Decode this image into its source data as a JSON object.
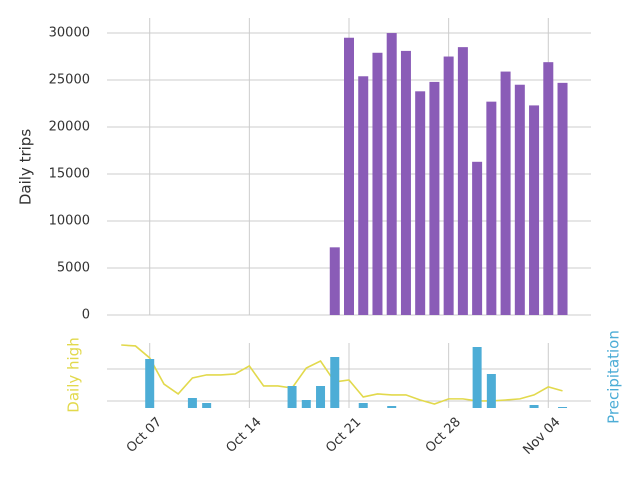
{
  "chart_data": [
    {
      "type": "bar",
      "ylabel": "Daily trips",
      "x": [
        "Oct 20",
        "Oct 21",
        "Oct 22",
        "Oct 23",
        "Oct 24",
        "Oct 25",
        "Oct 26",
        "Oct 27",
        "Oct 28",
        "Oct 29",
        "Oct 30",
        "Oct 31",
        "Nov 01",
        "Nov 02",
        "Nov 03",
        "Nov 04",
        "Nov 05"
      ],
      "values": [
        7200,
        29500,
        25400,
        27900,
        30000,
        28100,
        23800,
        24800,
        27500,
        28500,
        16300,
        22700,
        25900,
        24500,
        22300,
        26900,
        24700
      ],
      "color": "#8a5cb7",
      "xlim": [
        "Oct 04",
        "Nov 07"
      ],
      "ylim": [
        0,
        31600
      ],
      "yticks": [
        0,
        5000,
        10000,
        15000,
        20000,
        25000,
        30000
      ],
      "grid": true
    },
    {
      "type": "combo",
      "ylabel": "Daily high",
      "y2label": "Precipitation",
      "xlim": [
        "Oct 04",
        "Nov 07"
      ],
      "xticks": [
        "Oct 07",
        "Oct 14",
        "Oct 21",
        "Oct 28",
        "Nov 04"
      ],
      "ylim": [
        45.6,
        86.25
      ],
      "yticks": [
        50,
        70
      ],
      "y2lim": [
        0,
        1.3
      ],
      "grid": true,
      "series": [
        {
          "type": "line",
          "color": "#e2d94c",
          "x": [
            "Oct 05",
            "Oct 06",
            "Oct 07",
            "Oct 08",
            "Oct 09",
            "Oct 10",
            "Oct 11",
            "Oct 12",
            "Oct 13",
            "Oct 14",
            "Oct 15",
            "Oct 16",
            "Oct 17",
            "Oct 18",
            "Oct 19",
            "Oct 20",
            "Oct 21",
            "Oct 22",
            "Oct 23",
            "Oct 24",
            "Oct 25",
            "Oct 26",
            "Oct 27",
            "Oct 28",
            "Oct 29",
            "Oct 30",
            "Oct 31",
            "Nov 01",
            "Nov 02",
            "Nov 03",
            "Nov 04",
            "Nov 05"
          ],
          "values": [
            85,
            84.4,
            76.9,
            60.6,
            54.4,
            64.4,
            66.3,
            66.3,
            66.9,
            71.9,
            59.4,
            59.4,
            58.1,
            70.6,
            75,
            61.9,
            63.1,
            52.5,
            54.4,
            53.8,
            53.8,
            50.6,
            48.1,
            51.3,
            51.3,
            50,
            50,
            50.6,
            51.3,
            53.8,
            58.8,
            56.3
          ]
        },
        {
          "type": "bar",
          "axis": "y2",
          "color": "#4dadd6",
          "x": [
            "Oct 07",
            "Oct 10",
            "Oct 11",
            "Oct 17",
            "Oct 18",
            "Oct 19",
            "Oct 20",
            "Oct 22",
            "Oct 24",
            "Oct 30",
            "Oct 31",
            "Nov 03",
            "Nov 05"
          ],
          "values": [
            0.98,
            0.2,
            0.1,
            0.44,
            0.16,
            0.44,
            1.02,
            0.1,
            0.04,
            1.22,
            0.68,
            0.06,
            0.02
          ]
        }
      ]
    }
  ]
}
